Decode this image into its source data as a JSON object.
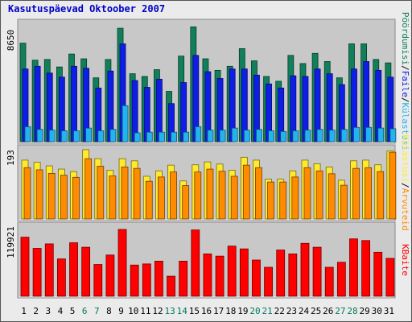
{
  "title": "Kasutuspäevad Oktoober 2007",
  "colors": {
    "background": "#ebebeb",
    "plot": "#c8c8c8",
    "title": "#0000c8",
    "pages": "#11805a",
    "hits": "#0f1ee6",
    "files": "#23b4f0",
    "visits": "#ffea2d",
    "sites": "#ff8c00",
    "kbytes": "#ff0000",
    "weekday_label": "#000000",
    "weekend_label": "#007a5e"
  },
  "chart_data": [
    {
      "type": "bar",
      "categories": [
        "1",
        "2",
        "3",
        "4",
        "5",
        "6",
        "7",
        "8",
        "9",
        "10",
        "11",
        "12",
        "13",
        "14",
        "15",
        "16",
        "17",
        "18",
        "19",
        "20",
        "21",
        "22",
        "23",
        "24",
        "25",
        "26",
        "27",
        "28",
        "29",
        "30",
        "31"
      ],
      "weekend_days": [
        "6",
        "7",
        "13",
        "14",
        "20",
        "21",
        "27",
        "28"
      ],
      "y_tick": "8650",
      "ylim": [
        0,
        8650
      ],
      "series": [
        {
          "name": "Pöördumisi",
          "values": [
            7250,
            6000,
            6050,
            5500,
            6450,
            6100,
            4700,
            6050,
            8350,
            5000,
            4800,
            5300,
            3700,
            6300,
            8450,
            6100,
            5250,
            5550,
            6850,
            5950,
            4800,
            4450,
            6350,
            5750,
            6500,
            5900,
            4700,
            7200,
            7200,
            6050,
            5800
          ]
        },
        {
          "name": "Faile",
          "values": [
            5350,
            5550,
            5050,
            4750,
            5550,
            5400,
            3950,
            5200,
            7200,
            4500,
            4000,
            4600,
            2800,
            4350,
            6350,
            5150,
            4650,
            5350,
            5350,
            4900,
            4250,
            3950,
            4850,
            4800,
            5350,
            5000,
            4200,
            5350,
            5900,
            5250,
            4750
          ]
        },
        {
          "name": "Külastusi",
          "values": [
            1100,
            900,
            850,
            800,
            800,
            1000,
            800,
            900,
            2650,
            650,
            700,
            700,
            700,
            700,
            1100,
            850,
            850,
            1000,
            850,
            900,
            800,
            750,
            800,
            850,
            900,
            850,
            900,
            1050,
            1050,
            1000,
            950
          ]
        }
      ]
    },
    {
      "type": "bar",
      "categories": [
        "1",
        "2",
        "3",
        "4",
        "5",
        "6",
        "7",
        "8",
        "9",
        "10",
        "11",
        "12",
        "13",
        "14",
        "15",
        "16",
        "17",
        "18",
        "19",
        "20",
        "21",
        "22",
        "23",
        "24",
        "25",
        "26",
        "27",
        "28",
        "29",
        "30",
        "31"
      ],
      "y_tick": "193",
      "ylim": [
        0,
        193
      ],
      "series": [
        {
          "name": "Külastusi",
          "values": [
            164,
            158,
            148,
            139,
            132,
            193,
            168,
            136,
            168,
            162,
            119,
            134,
            150,
            106,
            151,
            159,
            153,
            136,
            172,
            164,
            111,
            111,
            134,
            164,
            154,
            145,
            108,
            162,
            164,
            151,
            190
          ]
        },
        {
          "name": "Arvuteid",
          "values": [
            143,
            137,
            127,
            122,
            116,
            168,
            147,
            120,
            145,
            141,
            105,
            117,
            131,
            93,
            131,
            139,
            133,
            119,
            150,
            143,
            103,
            103,
            117,
            143,
            134,
            126,
            94,
            141,
            143,
            132,
            186
          ]
        }
      ]
    },
    {
      "type": "bar",
      "categories": [
        "1",
        "2",
        "3",
        "4",
        "5",
        "6",
        "7",
        "8",
        "9",
        "10",
        "11",
        "12",
        "13",
        "14",
        "15",
        "16",
        "17",
        "18",
        "19",
        "20",
        "21",
        "22",
        "23",
        "24",
        "25",
        "26",
        "27",
        "28",
        "29",
        "30",
        "31"
      ],
      "y_tick": "119921",
      "ylim": [
        0,
        119921
      ],
      "series": [
        {
          "name": "KBaite",
          "values": [
            106000,
            86000,
            94000,
            67000,
            96000,
            88000,
            57000,
            74000,
            119921,
            56000,
            58000,
            63000,
            36000,
            63000,
            119000,
            76000,
            72000,
            90000,
            85000,
            65000,
            52000,
            83000,
            76000,
            95000,
            88000,
            52000,
            61000,
            103000,
            100000,
            79000,
            68000
          ]
        }
      ]
    }
  ],
  "legend": {
    "top": [
      "Pöördumisi",
      "Faile",
      "Külastusi"
    ],
    "middle": [
      "Külastusi",
      "Arvuteid"
    ],
    "bottom": [
      "KBaite"
    ],
    "separator": "/"
  }
}
